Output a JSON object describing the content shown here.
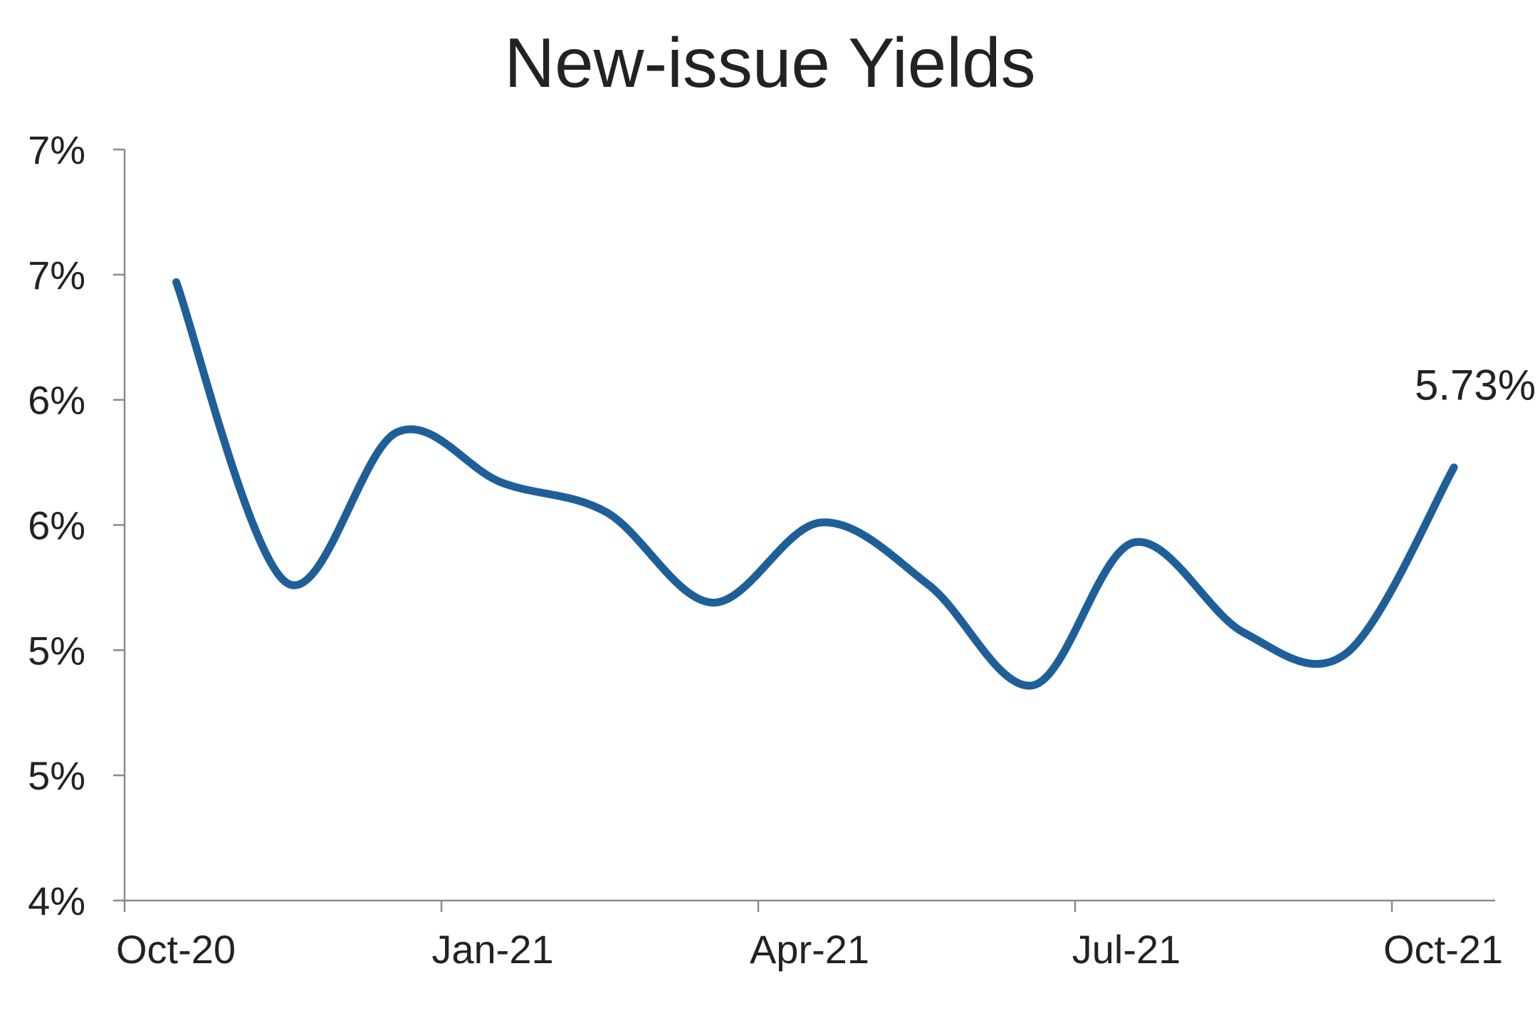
{
  "chart_data": {
    "type": "line",
    "title": "New-issue Yields",
    "xlabel": "",
    "ylabel": "",
    "x_tick_labels": [
      "Oct-20",
      "Jan-21",
      "Apr-21",
      "Jul-21",
      "Oct-21"
    ],
    "y_tick_labels": [
      "4%",
      "5%",
      "5%",
      "6%",
      "6%",
      "7%",
      "7%"
    ],
    "ylim": [
      4.0,
      7.0
    ],
    "x_range": [
      "2020-10-01",
      "2021-11-01"
    ],
    "grid": false,
    "legend": "none",
    "series": [
      {
        "color": "#1f5f99",
        "points": [
          {
            "x": "2020-10-16",
            "y": 6.47
          },
          {
            "x": "2020-11-17",
            "y": 5.27
          },
          {
            "x": "2020-12-19",
            "y": 5.87
          },
          {
            "x": "2021-01-18",
            "y": 5.67
          },
          {
            "x": "2021-02-17",
            "y": 5.55
          },
          {
            "x": "2021-03-19",
            "y": 5.19
          },
          {
            "x": "2021-04-19",
            "y": 5.51
          },
          {
            "x": "2021-05-20",
            "y": 5.26
          },
          {
            "x": "2021-06-19",
            "y": 4.86
          },
          {
            "x": "2021-07-18",
            "y": 5.43
          },
          {
            "x": "2021-08-19",
            "y": 5.07
          },
          {
            "x": "2021-09-18",
            "y": 4.99
          },
          {
            "x": "2021-10-19",
            "y": 5.73
          }
        ]
      }
    ],
    "annotations": [
      {
        "text": "5.73%",
        "x": "2021-10-19",
        "y": 5.73
      }
    ]
  }
}
